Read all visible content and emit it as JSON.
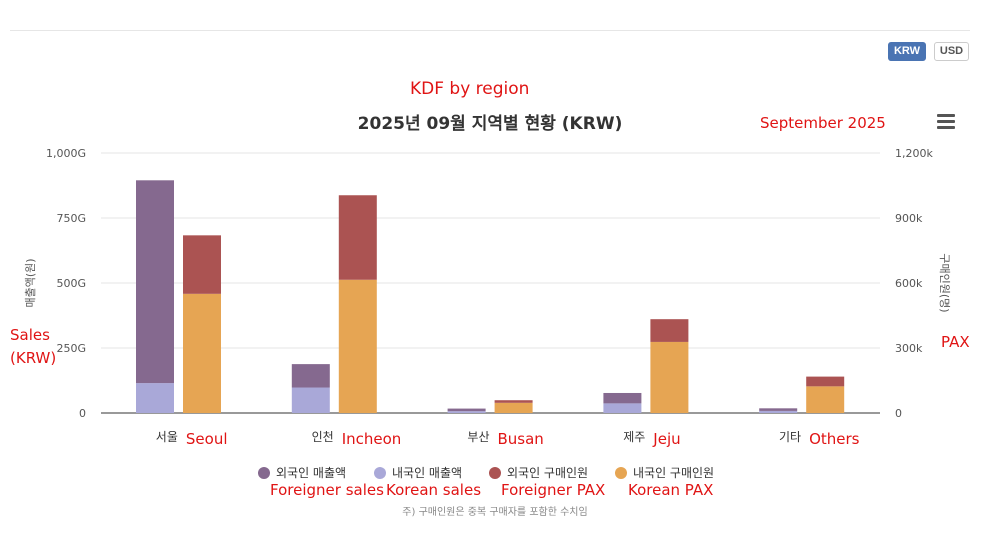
{
  "toolbar": {
    "krw_label": "KRW",
    "usd_label": "USD"
  },
  "annotations": {
    "title_en": "KDF by region",
    "period_en": "September 2025",
    "left_axis_en_line1": "Sales",
    "left_axis_en_line2": "(KRW)",
    "right_axis_en": "PAX",
    "categories_en": [
      "Seoul",
      "Incheon",
      "Busan",
      "Jeju",
      "Others"
    ],
    "legend_en": [
      "Foreigner sales",
      "Korean sales",
      "Foreigner PAX",
      "Korean PAX"
    ]
  },
  "footnote": "주) 구매인원은 중복 구매자를 포함한 수치임",
  "colors": {
    "foreign_sales": "#85698f",
    "korean_sales": "#a9a8d8",
    "foreign_pax": "#ab5352",
    "korean_pax": "#e6a553",
    "grid": "#e6e6e6",
    "axis_text": "#555555",
    "annotation": "#e01414"
  },
  "chart_data": {
    "type": "bar",
    "stacked": true,
    "title": "2025년 09월 지역별 현황 (KRW)",
    "categories": [
      "서울",
      "인천",
      "부산",
      "제주",
      "기타"
    ],
    "y_left": {
      "label": "매출액(원)",
      "ticks": [
        "0",
        "250G",
        "500G",
        "750G",
        "1,000G"
      ],
      "range": [
        0,
        1000
      ],
      "unit": "G"
    },
    "y_right": {
      "label": "구매인원(명)",
      "ticks": [
        "0",
        "300k",
        "600k",
        "900k",
        "1,200k"
      ],
      "range": [
        0,
        1200
      ],
      "unit": "k"
    },
    "sales_series": [
      {
        "name": "외국인 매출액",
        "axis": "left",
        "values": [
          780,
          90,
          10,
          40,
          10
        ]
      },
      {
        "name": "내국인 매출액",
        "axis": "left",
        "values": [
          115,
          98,
          7,
          37,
          8
        ]
      }
    ],
    "pax_series": [
      {
        "name": "외국인 구매인원",
        "axis": "right",
        "values": [
          270,
          390,
          12,
          105,
          45
        ]
      },
      {
        "name": "내국인 구매인원",
        "axis": "right",
        "values": [
          550,
          615,
          47,
          328,
          123
        ]
      }
    ],
    "legend": [
      "외국인 매출액",
      "내국인 매출액",
      "외국인 구매인원",
      "내국인 구매인원"
    ],
    "legend_position": "bottom",
    "grid": true
  }
}
